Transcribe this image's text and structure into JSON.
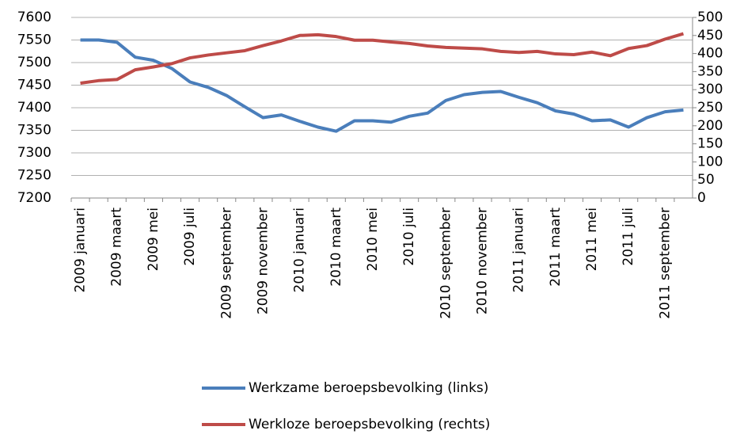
{
  "chart_data": {
    "type": "line",
    "categories": [
      "2009 januari",
      null,
      "2009 maart",
      null,
      "2009 mei",
      null,
      "2009 juli",
      null,
      "2009 september",
      null,
      "2009 november",
      null,
      "2010 januari",
      null,
      "2010 maart",
      null,
      "2010 mei",
      null,
      "2010 juli",
      null,
      "2010 september",
      null,
      "2010 november",
      null,
      "2011 januari",
      null,
      "2011 maart",
      null,
      "2011 mei",
      null,
      "2011 juli",
      null,
      "2011 september",
      null
    ],
    "series": [
      {
        "name": "Werkzame beroepsbevolking (links)",
        "color": "#4a7ebb",
        "values": [
          7550,
          7550,
          7545,
          7512,
          7505,
          7487,
          7457,
          7445,
          7427,
          7402,
          7378,
          7384,
          7370,
          7357,
          7348,
          7371,
          7371,
          7368,
          7381,
          7388,
          7416,
          7429,
          7434,
          7436,
          7423,
          7411,
          7393,
          7386,
          7371,
          7373,
          7357,
          7378,
          7391,
          7395
        ]
      },
      {
        "name": "Werkloze beroepsbevolking (rechts)",
        "color": "#be4b48",
        "axis": "y2",
        "values": [
          318,
          325,
          328,
          355,
          363,
          372,
          388,
          396,
          402,
          408,
          422,
          435,
          450,
          452,
          447,
          437,
          437,
          432,
          428,
          421,
          417,
          415,
          413,
          406,
          403,
          406,
          399,
          397,
          404,
          394,
          414,
          422,
          440,
          455
        ]
      }
    ],
    "ylim": [
      7200,
      7600
    ],
    "yticks": [
      7200,
      7250,
      7300,
      7350,
      7400,
      7450,
      7500,
      7550,
      7600
    ],
    "y2lim": [
      0,
      500
    ],
    "y2ticks": [
      0,
      50,
      100,
      150,
      200,
      250,
      300,
      350,
      400,
      450,
      500
    ],
    "grid": true
  }
}
